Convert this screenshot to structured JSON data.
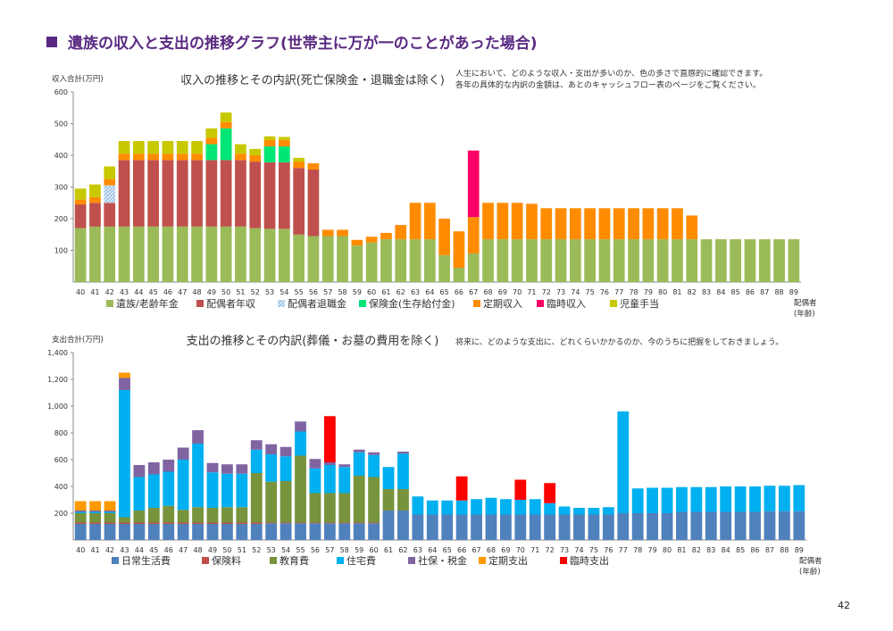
{
  "page": {
    "title": "遺族の収入と支出の推移グラフ(世帯主に万が一のことがあった場合)",
    "page_number": "42"
  },
  "chart_data": [
    {
      "type": "bar",
      "stacked": true,
      "title": "収入の推移とその内訳(死亡保険金・退職金は除く)",
      "note_lines": [
        "人生において、どのような収入・支出が多いのか、色の多さで直感的に確認できます。",
        "各年の具体的な内訳の金額は、あとのキャッシュフロー表のページをご覧ください。"
      ],
      "ylabel": "収入合計(万円)",
      "xlabel": "配偶者\n(年齢)",
      "ylim": [
        0,
        600
      ],
      "yticks": [
        100,
        200,
        300,
        400,
        500,
        600
      ],
      "ytick_labels": [
        "100",
        "200",
        "300",
        "400",
        "500",
        "600"
      ],
      "grid": false,
      "legend_position": "bottom",
      "categories": [
        "40",
        "41",
        "42",
        "43",
        "44",
        "45",
        "46",
        "47",
        "48",
        "49",
        "50",
        "51",
        "52",
        "53",
        "54",
        "55",
        "56",
        "57",
        "58",
        "59",
        "60",
        "61",
        "62",
        "63",
        "64",
        "65",
        "66",
        "67",
        "68",
        "69",
        "70",
        "71",
        "72",
        "73",
        "74",
        "75",
        "76",
        "77",
        "78",
        "79",
        "80",
        "81",
        "82",
        "83",
        "84",
        "85",
        "86",
        "87",
        "88",
        "89"
      ],
      "series": [
        {
          "name": "遺族/老齢年金",
          "color": "#9bbb59",
          "values": [
            170,
            175,
            175,
            175,
            175,
            175,
            175,
            175,
            175,
            175,
            175,
            175,
            170,
            168,
            168,
            150,
            145,
            145,
            145,
            115,
            125,
            135,
            135,
            135,
            135,
            85,
            45,
            90,
            135,
            135,
            135,
            135,
            135,
            135,
            135,
            135,
            135,
            135,
            135,
            135,
            135,
            135,
            135,
            135,
            135,
            135,
            135,
            135,
            135,
            135
          ]
        },
        {
          "name": "配偶者年収",
          "color": "#c0504d",
          "values": [
            75,
            75,
            75,
            210,
            210,
            210,
            210,
            210,
            210,
            210,
            210,
            210,
            210,
            210,
            210,
            210,
            210,
            0,
            0,
            0,
            0,
            0,
            0,
            0,
            0,
            0,
            0,
            0,
            0,
            0,
            0,
            0,
            0,
            0,
            0,
            0,
            0,
            0,
            0,
            0,
            0,
            0,
            0,
            0,
            0,
            0,
            0,
            0,
            0,
            0
          ]
        },
        {
          "name": "配偶者退職金",
          "color": "#9dc3e6",
          "pattern": "hatch",
          "values": [
            0,
            0,
            55,
            0,
            0,
            0,
            0,
            0,
            0,
            0,
            0,
            0,
            0,
            0,
            0,
            0,
            0,
            0,
            0,
            0,
            0,
            0,
            0,
            0,
            0,
            0,
            0,
            0,
            0,
            0,
            0,
            0,
            0,
            0,
            0,
            0,
            0,
            0,
            0,
            0,
            0,
            0,
            0,
            0,
            0,
            0,
            0,
            0,
            0,
            0
          ]
        },
        {
          "name": "保険金(生存給付金)",
          "color": "#00e676",
          "values": [
            0,
            0,
            0,
            0,
            0,
            0,
            0,
            0,
            0,
            50,
            100,
            0,
            0,
            50,
            50,
            0,
            0,
            0,
            0,
            0,
            0,
            0,
            0,
            0,
            0,
            0,
            0,
            0,
            0,
            0,
            0,
            0,
            0,
            0,
            0,
            0,
            0,
            0,
            0,
            0,
            0,
            0,
            0,
            0,
            0,
            0,
            0,
            0,
            0,
            0
          ]
        },
        {
          "name": "定期収入",
          "color": "#ff8c00",
          "values": [
            15,
            18,
            20,
            20,
            20,
            20,
            20,
            20,
            20,
            20,
            20,
            20,
            20,
            20,
            20,
            20,
            20,
            20,
            20,
            18,
            18,
            20,
            45,
            115,
            115,
            115,
            115,
            115,
            115,
            115,
            115,
            112,
            98,
            98,
            98,
            98,
            98,
            98,
            98,
            98,
            98,
            98,
            75,
            0,
            0,
            0,
            0,
            0,
            0,
            0
          ]
        },
        {
          "name": "臨時収入",
          "color": "#ff0066",
          "values": [
            0,
            0,
            0,
            0,
            0,
            0,
            0,
            0,
            0,
            0,
            0,
            0,
            0,
            0,
            0,
            0,
            0,
            0,
            0,
            0,
            0,
            0,
            0,
            0,
            0,
            0,
            0,
            210,
            0,
            0,
            0,
            0,
            0,
            0,
            0,
            0,
            0,
            0,
            0,
            0,
            0,
            0,
            0,
            0,
            0,
            0,
            0,
            0,
            0,
            0
          ]
        },
        {
          "name": "児童手当",
          "color": "#c8c800",
          "values": [
            35,
            40,
            40,
            40,
            40,
            40,
            40,
            40,
            40,
            30,
            30,
            30,
            20,
            12,
            10,
            12,
            0,
            0,
            0,
            0,
            0,
            0,
            0,
            0,
            0,
            0,
            0,
            0,
            0,
            0,
            0,
            0,
            0,
            0,
            0,
            0,
            0,
            0,
            0,
            0,
            0,
            0,
            0,
            0,
            0,
            0,
            0,
            0,
            0,
            0
          ]
        }
      ]
    },
    {
      "type": "bar",
      "stacked": true,
      "title": "支出の推移とその内訳(葬儀・お墓の費用を除く)",
      "note_lines": [
        "将来に、どのような支出に、どれくらいかかるのか、今のうちに把握をしておきましょう。"
      ],
      "ylabel": "支出合計(万円)",
      "xlabel": "配偶者\n(年齢)",
      "ylim": [
        0,
        1400
      ],
      "yticks": [
        200,
        400,
        600,
        800,
        1000,
        1200,
        1400
      ],
      "ytick_labels": [
        "200",
        "400",
        "600",
        "800",
        "1,000",
        "1,200",
        "1,400"
      ],
      "grid": false,
      "legend_position": "bottom",
      "categories": [
        "40",
        "41",
        "42",
        "43",
        "44",
        "45",
        "46",
        "47",
        "48",
        "49",
        "50",
        "51",
        "52",
        "53",
        "54",
        "55",
        "56",
        "57",
        "58",
        "59",
        "60",
        "61",
        "62",
        "63",
        "64",
        "65",
        "66",
        "67",
        "68",
        "69",
        "70",
        "71",
        "72",
        "73",
        "74",
        "75",
        "76",
        "77",
        "78",
        "79",
        "80",
        "81",
        "82",
        "83",
        "84",
        "85",
        "86",
        "87",
        "88",
        "89"
      ],
      "series": [
        {
          "name": "日常生活費",
          "color": "#4f81bd",
          "values": [
            120,
            120,
            120,
            120,
            120,
            120,
            120,
            120,
            120,
            120,
            120,
            120,
            120,
            125,
            125,
            125,
            125,
            125,
            125,
            125,
            125,
            220,
            220,
            190,
            190,
            190,
            190,
            190,
            190,
            190,
            190,
            190,
            190,
            190,
            190,
            190,
            190,
            200,
            200,
            200,
            200,
            210,
            210,
            210,
            210,
            210,
            210,
            215,
            215,
            215
          ]
        },
        {
          "name": "保険料",
          "color": "#c0504d",
          "values": [
            10,
            10,
            10,
            10,
            10,
            10,
            10,
            10,
            10,
            10,
            10,
            10,
            10,
            5,
            5,
            5,
            5,
            5,
            5,
            5,
            5,
            0,
            0,
            0,
            0,
            0,
            0,
            0,
            0,
            0,
            0,
            0,
            0,
            0,
            0,
            0,
            0,
            0,
            0,
            0,
            0,
            0,
            0,
            0,
            0,
            0,
            0,
            0,
            0,
            0
          ]
        },
        {
          "name": "教育費",
          "color": "#77933c",
          "values": [
            70,
            70,
            70,
            40,
            90,
            110,
            125,
            95,
            115,
            110,
            115,
            115,
            370,
            305,
            310,
            500,
            220,
            220,
            220,
            350,
            340,
            160,
            160,
            0,
            0,
            0,
            0,
            0,
            0,
            0,
            0,
            0,
            0,
            0,
            0,
            0,
            0,
            0,
            0,
            0,
            0,
            0,
            0,
            0,
            0,
            0,
            0,
            0,
            0,
            0
          ]
        },
        {
          "name": "住宅費",
          "color": "#00b0f0",
          "values": [
            10,
            10,
            10,
            950,
            250,
            250,
            255,
            375,
            475,
            265,
            250,
            250,
            175,
            205,
            185,
            180,
            185,
            210,
            195,
            175,
            165,
            165,
            265,
            135,
            105,
            105,
            105,
            115,
            125,
            115,
            110,
            115,
            85,
            60,
            50,
            50,
            55,
            760,
            185,
            190,
            190,
            185,
            185,
            185,
            190,
            190,
            190,
            190,
            190,
            195
          ]
        },
        {
          "name": "社保・税金",
          "color": "#8064a2",
          "values": [
            10,
            10,
            10,
            90,
            90,
            90,
            90,
            90,
            100,
            70,
            70,
            70,
            70,
            75,
            70,
            75,
            70,
            20,
            20,
            20,
            20,
            0,
            15,
            0,
            0,
            0,
            0,
            0,
            0,
            0,
            0,
            0,
            0,
            0,
            0,
            0,
            0,
            0,
            0,
            0,
            0,
            0,
            0,
            0,
            0,
            0,
            0,
            0,
            0,
            0
          ]
        },
        {
          "name": "定期支出",
          "color": "#ff9900",
          "values": [
            70,
            70,
            70,
            40,
            0,
            0,
            0,
            0,
            0,
            0,
            0,
            0,
            0,
            0,
            0,
            0,
            0,
            0,
            0,
            0,
            0,
            0,
            0,
            0,
            0,
            0,
            0,
            0,
            0,
            0,
            0,
            0,
            0,
            0,
            0,
            0,
            0,
            0,
            0,
            0,
            0,
            0,
            0,
            0,
            0,
            0,
            0,
            0,
            0,
            0
          ]
        },
        {
          "name": "臨時支出",
          "color": "#ff0000",
          "values": [
            0,
            0,
            0,
            0,
            0,
            0,
            0,
            0,
            0,
            0,
            0,
            0,
            0,
            0,
            0,
            0,
            0,
            345,
            0,
            0,
            0,
            0,
            0,
            0,
            0,
            0,
            180,
            0,
            0,
            0,
            150,
            0,
            150,
            0,
            0,
            0,
            0,
            0,
            0,
            0,
            0,
            0,
            0,
            0,
            0,
            0,
            0,
            0,
            0,
            0
          ]
        }
      ]
    }
  ]
}
